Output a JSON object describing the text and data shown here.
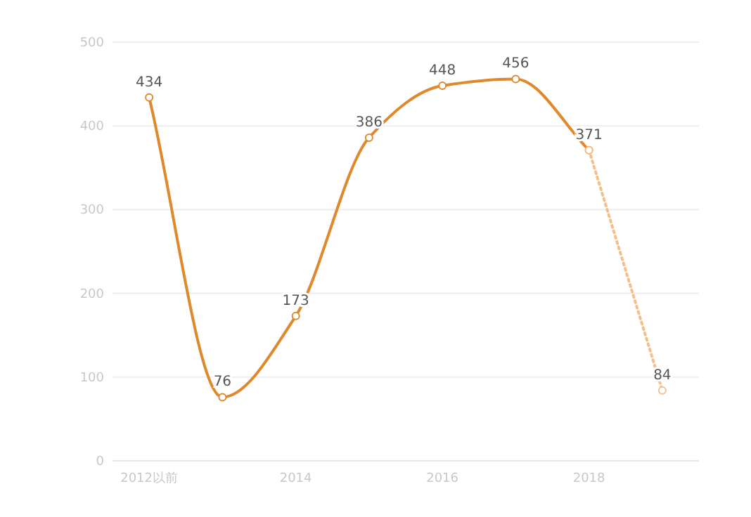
{
  "chart_data": {
    "type": "line",
    "categories": [
      "2012以前",
      null,
      "2014",
      null,
      "2016",
      null,
      "2018",
      null
    ],
    "ylim": [
      0,
      500
    ],
    "yticks": [
      0,
      100,
      200,
      300,
      400,
      500
    ],
    "grid": "y",
    "marker": "circle",
    "data_labels": true,
    "series": [
      {
        "color": "#e0882c",
        "line_style": "solid",
        "values": [
          434,
          76,
          173,
          386,
          448,
          456,
          371,
          null
        ]
      },
      {
        "color": "#f2c08c",
        "line_style": "dotted",
        "values": [
          null,
          null,
          null,
          null,
          null,
          null,
          371,
          84
        ],
        "value_labels": [
          null,
          null,
          null,
          null,
          null,
          null,
          null,
          "84"
        ]
      }
    ]
  }
}
